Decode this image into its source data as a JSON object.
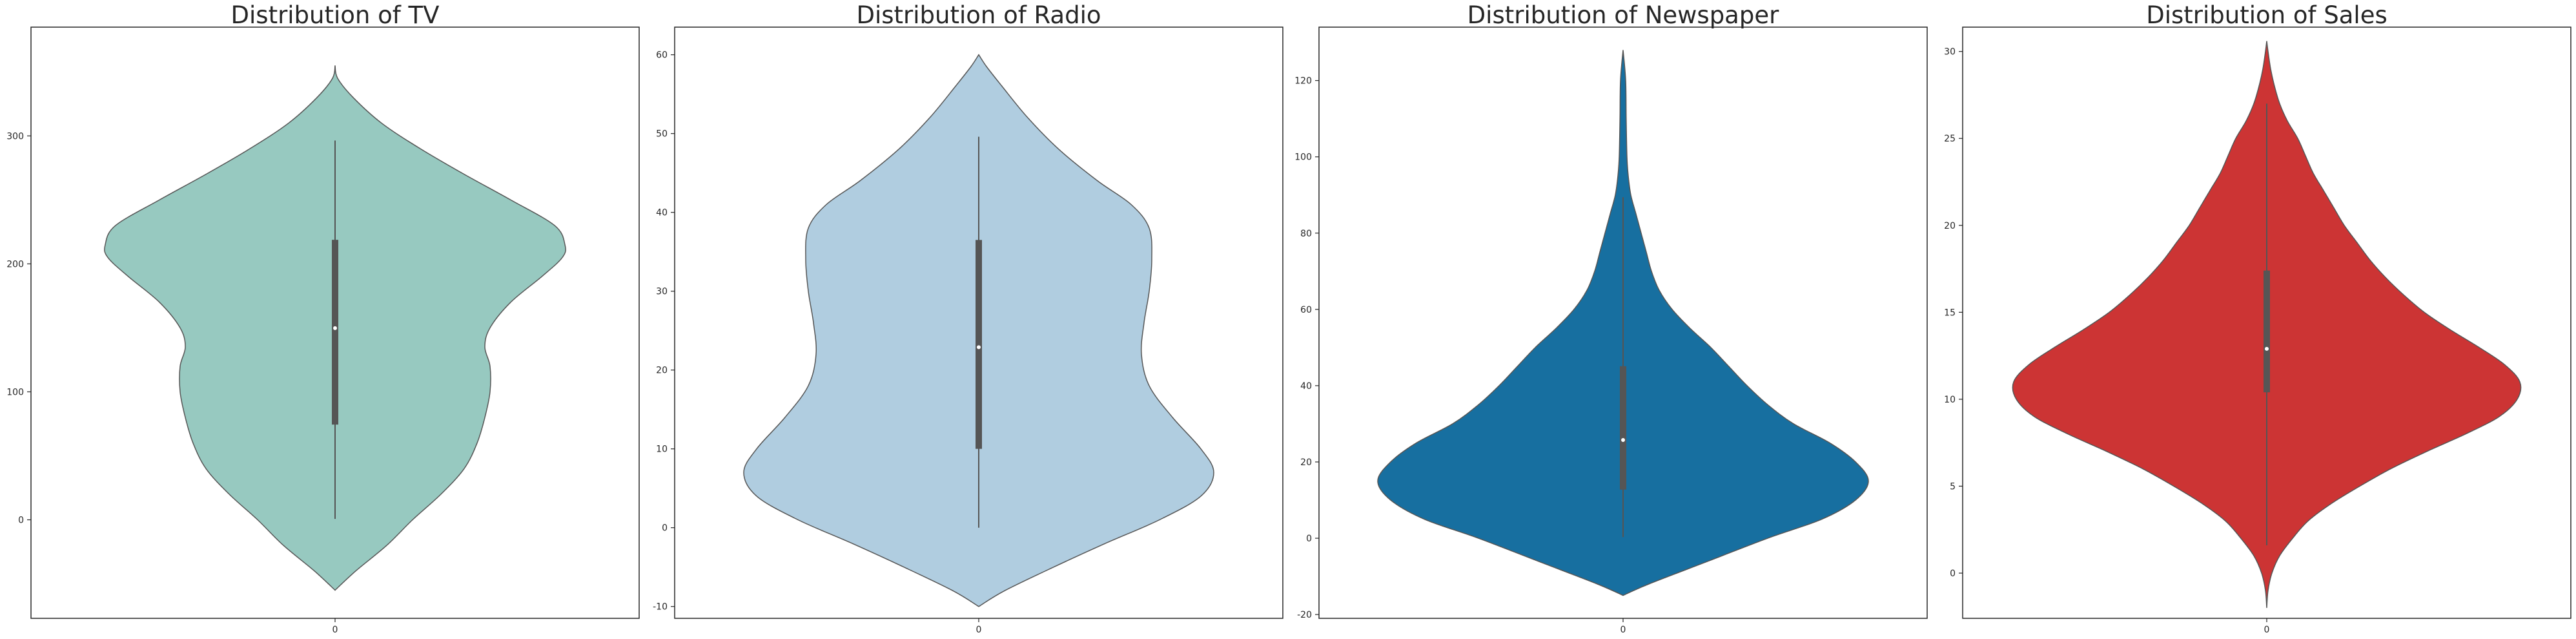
{
  "chart_data": [
    {
      "type": "violin",
      "title": "Distribution of TV",
      "xlabel": "",
      "ylabel": "",
      "categories": [
        "0"
      ],
      "ylim": [
        -77,
        385
      ],
      "yticks": [
        0,
        100,
        200,
        300
      ],
      "color": "#97c9c0",
      "outline": "#555555",
      "kde": [
        [
          -55,
          0
        ],
        [
          -40,
          0.08
        ],
        [
          -20,
          0.2
        ],
        [
          0,
          0.3
        ],
        [
          20,
          0.41
        ],
        [
          40,
          0.5
        ],
        [
          60,
          0.55
        ],
        [
          80,
          0.58
        ],
        [
          100,
          0.6
        ],
        [
          120,
          0.6
        ],
        [
          135,
          0.58
        ],
        [
          150,
          0.6
        ],
        [
          170,
          0.68
        ],
        [
          190,
          0.8
        ],
        [
          205,
          0.88
        ],
        [
          215,
          0.89
        ],
        [
          230,
          0.85
        ],
        [
          250,
          0.68
        ],
        [
          270,
          0.5
        ],
        [
          290,
          0.33
        ],
        [
          310,
          0.18
        ],
        [
          330,
          0.07
        ],
        [
          345,
          0.01
        ],
        [
          355,
          0
        ]
      ],
      "box": {
        "whisker_low": 0.7,
        "q1": 74.4,
        "median": 149.8,
        "q3": 218.8,
        "whisker_high": 296.4
      }
    },
    {
      "type": "violin",
      "title": "Distribution of Radio",
      "xlabel": "",
      "ylabel": "",
      "categories": [
        "0"
      ],
      "ylim": [
        -11.5,
        63.5
      ],
      "yticks": [
        -10,
        0,
        10,
        20,
        30,
        40,
        50,
        60
      ],
      "color": "#b0cde0",
      "outline": "#555555",
      "kde": [
        [
          -10,
          0
        ],
        [
          -8,
          0.1
        ],
        [
          -5,
          0.29
        ],
        [
          -2,
          0.49
        ],
        [
          1,
          0.7
        ],
        [
          4,
          0.86
        ],
        [
          7,
          0.91
        ],
        [
          10,
          0.86
        ],
        [
          14,
          0.75
        ],
        [
          18,
          0.66
        ],
        [
          22,
          0.63
        ],
        [
          26,
          0.64
        ],
        [
          30,
          0.66
        ],
        [
          34,
          0.67
        ],
        [
          38,
          0.66
        ],
        [
          41,
          0.59
        ],
        [
          44,
          0.46
        ],
        [
          48,
          0.31
        ],
        [
          52,
          0.19
        ],
        [
          56,
          0.09
        ],
        [
          58.5,
          0.03
        ],
        [
          60,
          0
        ]
      ],
      "box": {
        "whisker_low": 0.0,
        "q1": 10.0,
        "median": 22.9,
        "q3": 36.5,
        "whisker_high": 49.6
      }
    },
    {
      "type": "violin",
      "title": "Distribution of Newspaper",
      "xlabel": "",
      "ylabel": "",
      "categories": [
        "0"
      ],
      "ylim": [
        -21,
        134
      ],
      "yticks": [
        -20,
        0,
        20,
        40,
        60,
        80,
        100,
        120
      ],
      "color": "#176fa0",
      "outline": "#555555",
      "kde": [
        [
          -15,
          0
        ],
        [
          -12,
          0.1
        ],
        [
          -6,
          0.33
        ],
        [
          0,
          0.56
        ],
        [
          5,
          0.77
        ],
        [
          10,
          0.9
        ],
        [
          15,
          0.95
        ],
        [
          20,
          0.9
        ],
        [
          25,
          0.8
        ],
        [
          30,
          0.66
        ],
        [
          35,
          0.56
        ],
        [
          40,
          0.48
        ],
        [
          45,
          0.41
        ],
        [
          50,
          0.34
        ],
        [
          55,
          0.26
        ],
        [
          60,
          0.19
        ],
        [
          65,
          0.14
        ],
        [
          70,
          0.11
        ],
        [
          75,
          0.09
        ],
        [
          80,
          0.07
        ],
        [
          85,
          0.05
        ],
        [
          90,
          0.03
        ],
        [
          95,
          0.02
        ],
        [
          100,
          0.015
        ],
        [
          110,
          0.012
        ],
        [
          120,
          0.01
        ],
        [
          128,
          0
        ]
      ],
      "box": {
        "whisker_low": 0.3,
        "q1": 12.75,
        "median": 25.75,
        "q3": 45.1,
        "whisker_high": 89.4
      }
    },
    {
      "type": "violin",
      "title": "Distribution of Sales",
      "xlabel": "",
      "ylabel": "",
      "categories": [
        "0"
      ],
      "ylim": [
        -2.6,
        31.4
      ],
      "yticks": [
        0,
        5,
        10,
        15,
        20,
        25,
        30
      ],
      "color": "#cc3434",
      "outline": "#555555",
      "kde": [
        [
          -2,
          0
        ],
        [
          -1,
          0.005
        ],
        [
          0,
          0.02
        ],
        [
          1,
          0.05
        ],
        [
          2,
          0.1
        ],
        [
          3,
          0.16
        ],
        [
          4,
          0.25
        ],
        [
          5,
          0.36
        ],
        [
          6,
          0.48
        ],
        [
          7,
          0.62
        ],
        [
          8,
          0.77
        ],
        [
          9,
          0.9
        ],
        [
          10,
          0.97
        ],
        [
          11,
          0.98
        ],
        [
          12,
          0.92
        ],
        [
          13,
          0.82
        ],
        [
          14,
          0.71
        ],
        [
          15,
          0.61
        ],
        [
          16,
          0.53
        ],
        [
          17,
          0.46
        ],
        [
          18,
          0.4
        ],
        [
          19,
          0.35
        ],
        [
          20,
          0.3
        ],
        [
          21,
          0.26
        ],
        [
          22,
          0.22
        ],
        [
          23,
          0.18
        ],
        [
          24,
          0.15
        ],
        [
          25,
          0.12
        ],
        [
          26,
          0.08
        ],
        [
          27,
          0.05
        ],
        [
          28,
          0.03
        ],
        [
          29,
          0.015
        ],
        [
          30,
          0.005
        ],
        [
          30.6,
          0
        ]
      ],
      "box": {
        "whisker_low": 1.6,
        "q1": 10.4,
        "median": 12.9,
        "q3": 17.4,
        "whisker_high": 27.0
      }
    }
  ]
}
